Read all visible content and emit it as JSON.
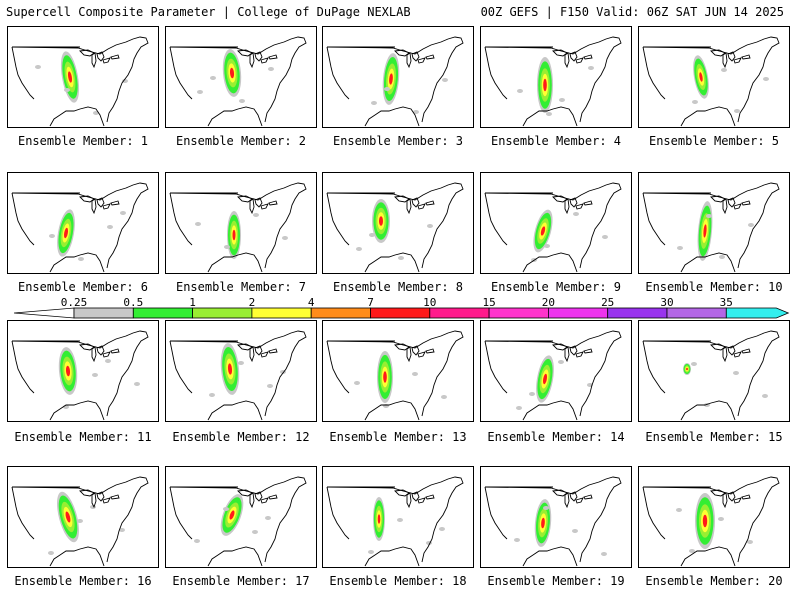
{
  "header": {
    "title_left": "Supercell Composite Parameter | College of DuPage NEXLAB",
    "title_right": "00Z GEFS | F150 Valid: 06Z SAT JUN 14 2025"
  },
  "panels": [
    {
      "label": "Ensemble Member: 1"
    },
    {
      "label": "Ensemble Member: 2"
    },
    {
      "label": "Ensemble Member: 3"
    },
    {
      "label": "Ensemble Member: 4"
    },
    {
      "label": "Ensemble Member: 5"
    },
    {
      "label": "Ensemble Member: 6"
    },
    {
      "label": "Ensemble Member: 7"
    },
    {
      "label": "Ensemble Member: 8"
    },
    {
      "label": "Ensemble Member: 9"
    },
    {
      "label": "Ensemble Member: 10"
    },
    {
      "label": "Ensemble Member: 11"
    },
    {
      "label": "Ensemble Member: 12"
    },
    {
      "label": "Ensemble Member: 13"
    },
    {
      "label": "Ensemble Member: 14"
    },
    {
      "label": "Ensemble Member: 15"
    },
    {
      "label": "Ensemble Member: 16"
    },
    {
      "label": "Ensemble Member: 17"
    },
    {
      "label": "Ensemble Member: 18"
    },
    {
      "label": "Ensemble Member: 19"
    },
    {
      "label": "Ensemble Member: 20"
    }
  ],
  "colorbar": {
    "ticks": [
      "0.25",
      "0.5",
      "1",
      "2",
      "4",
      "7",
      "10",
      "15",
      "20",
      "25",
      "30",
      "35"
    ],
    "colors": [
      "#c8c8c8",
      "#33ee33",
      "#99ee33",
      "#ffff33",
      "#ff8c1a",
      "#ff1a1a",
      "#ff1a8c",
      "#ff33cc",
      "#ee33ee",
      "#9933ee",
      "#b366e6",
      "#33eeee"
    ],
    "min_color": "#ffffff"
  }
}
